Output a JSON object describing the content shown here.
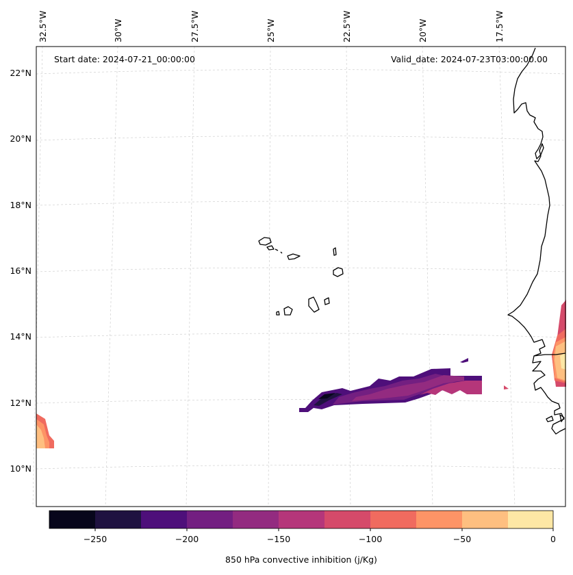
{
  "map": {
    "start_date": "Start date: 2024-07-21_00:00:00",
    "valid_date": "Valid_date: 2024-07-23T03:00:00.00",
    "lon_labels": [
      "32.5°W",
      "30°W",
      "27.5°W",
      "25°W",
      "22.5°W",
      "20°W",
      "17.5°W"
    ],
    "lat_labels": [
      "22°N",
      "20°N",
      "18°N",
      "16°N",
      "14°N",
      "12°N",
      "10°N"
    ]
  },
  "colorbar": {
    "label": "850 hPa convective inhibition (j/Kg)",
    "ticks": [
      "−250",
      "−200",
      "−150",
      "−100",
      "−50",
      "0"
    ],
    "colors": [
      "#07061b",
      "#1f1240",
      "#4e0f7a",
      "#731f81",
      "#932b80",
      "#b5367a",
      "#d54a6a",
      "#f06b5f",
      "#fd9466",
      "#febf80",
      "#fde7a5"
    ]
  }
}
